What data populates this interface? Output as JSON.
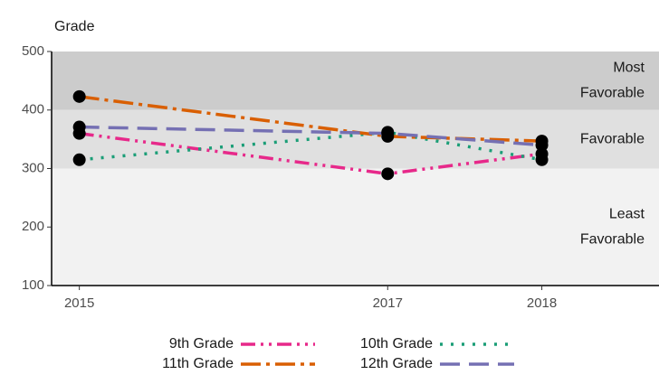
{
  "chart_data": {
    "type": "line",
    "title": "Grade",
    "x": [
      2015,
      2017,
      2018
    ],
    "xlim": [
      2014.82,
      2018.76
    ],
    "xticks": [
      2015,
      2017,
      2018
    ],
    "ylim": [
      100,
      500
    ],
    "yticks": [
      100,
      200,
      300,
      400,
      500
    ],
    "bands": [
      {
        "from": 400,
        "to": 500,
        "color": "#cccccc",
        "label": [
          "Most",
          "Favorable"
        ]
      },
      {
        "from": 300,
        "to": 400,
        "color": "#e0e0e0",
        "label": [
          "Favorable"
        ]
      },
      {
        "from": 100,
        "to": 300,
        "color": "#f2f2f2",
        "label": [
          "Least",
          "Favorable"
        ]
      }
    ],
    "series": [
      {
        "name": "9th Grade",
        "color": "#e7298a",
        "values": [
          360,
          291,
          325
        ]
      },
      {
        "name": "10th Grade",
        "color": "#1b9e77",
        "values": [
          315,
          362,
          315
        ]
      },
      {
        "name": "11th Grade",
        "color": "#d95f02",
        "values": [
          423,
          355,
          347
        ]
      },
      {
        "name": "12th Grade",
        "color": "#7570b3",
        "values": [
          371,
          360,
          340
        ]
      }
    ]
  }
}
